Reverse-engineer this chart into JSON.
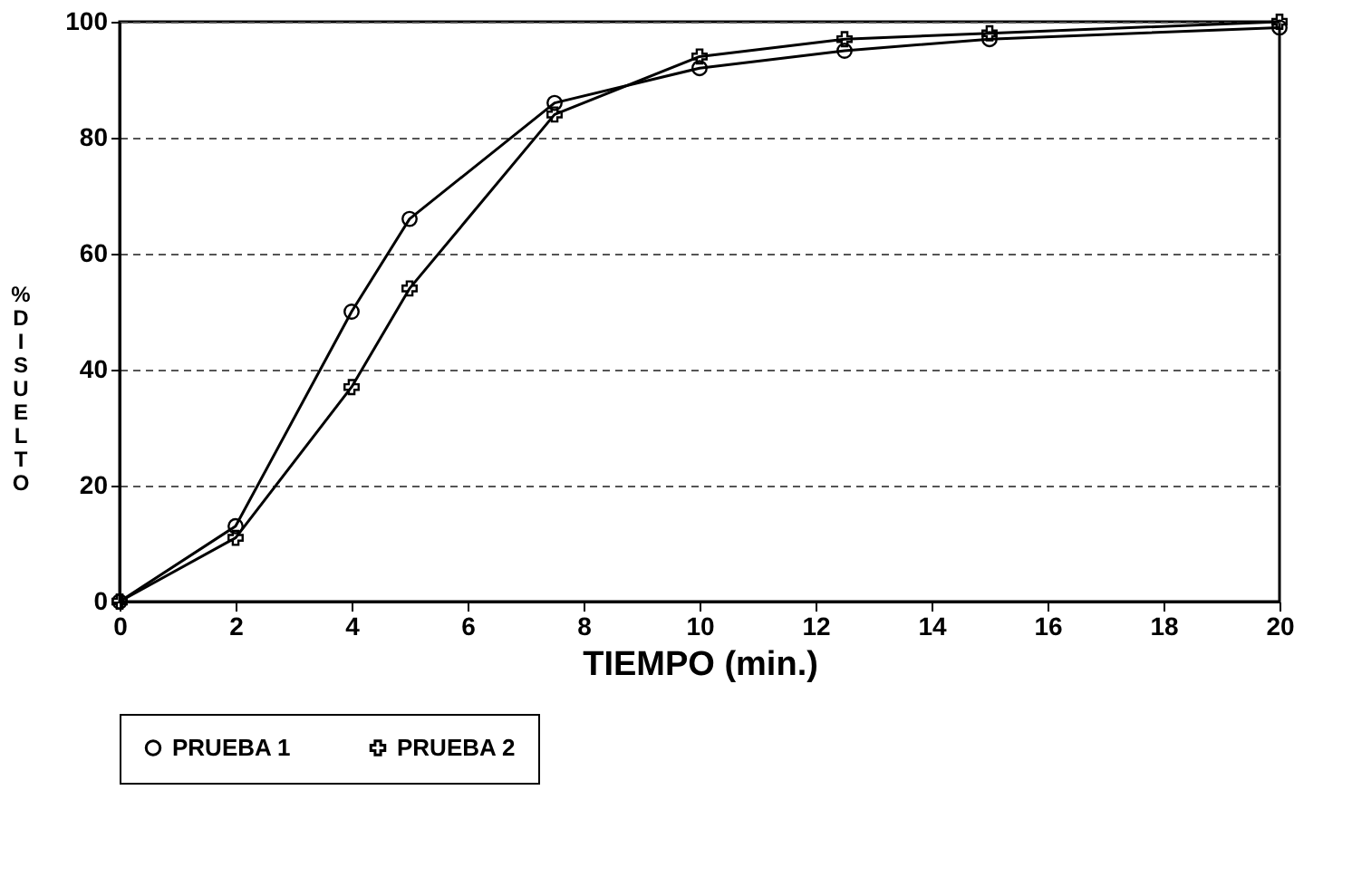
{
  "chart_data": {
    "type": "line",
    "xlabel": "TIEMPO (min.)",
    "ylabel": "% DISUELTO",
    "x": [
      0,
      2,
      4,
      5,
      7.5,
      10,
      12.5,
      15,
      20
    ],
    "series": [
      {
        "name": "PRUEBA 1",
        "color": "#000000",
        "marker": "circle",
        "values": [
          0,
          13,
          50,
          66,
          86,
          92,
          95,
          97,
          99
        ]
      },
      {
        "name": "PRUEBA 2",
        "color": "#000000",
        "marker": "cross",
        "values": [
          0,
          11,
          37,
          54,
          84,
          94,
          97,
          98,
          100
        ]
      }
    ],
    "xlim": [
      0,
      20
    ],
    "xticks": [
      0,
      2,
      4,
      6,
      8,
      10,
      12,
      14,
      16,
      18,
      20
    ],
    "ylim": [
      0,
      100
    ],
    "yticks": [
      0,
      20,
      40,
      60,
      80,
      100
    ],
    "grid": "y",
    "legend": "bottom",
    "line_style": "solid"
  }
}
